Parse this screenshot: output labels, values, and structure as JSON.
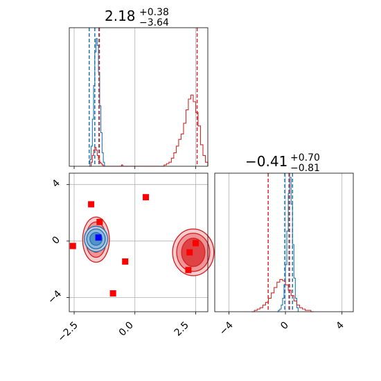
{
  "colors": {
    "blue": "#1f77b4",
    "red": "#d62728",
    "marker_red": "#ff0000",
    "marker_blue": "#0000ff",
    "grid": "#b0b0b0"
  },
  "chart_data": [
    {
      "panel": "top-left",
      "type": "histogram",
      "title": {
        "value": "2.18",
        "plus": "+0.38",
        "minus": "−3.64"
      },
      "xlim": [
        -2.7,
        3.0
      ],
      "grid": true,
      "series": [
        {
          "color": "blue",
          "bins": [
            [
              -1.9,
              0.0
            ],
            [
              -1.85,
              0.05
            ],
            [
              -1.8,
              0.15
            ],
            [
              -1.75,
              0.35
            ],
            [
              -1.7,
              0.6
            ],
            [
              -1.65,
              0.85
            ],
            [
              -1.6,
              0.95
            ],
            [
              -1.55,
              0.9
            ],
            [
              -1.5,
              0.7
            ],
            [
              -1.45,
              0.45
            ],
            [
              -1.4,
              0.25
            ],
            [
              -1.35,
              0.1
            ],
            [
              -1.3,
              0.03
            ],
            [
              -1.25,
              0.0
            ]
          ],
          "quantile_lines": [
            -1.88,
            -1.65,
            -1.48
          ]
        },
        {
          "color": "red",
          "bins": [
            [
              -1.85,
              0.0
            ],
            [
              -1.8,
              0.03
            ],
            [
              -1.75,
              0.08
            ],
            [
              -1.7,
              0.12
            ],
            [
              -1.65,
              0.14
            ],
            [
              -1.6,
              0.12
            ],
            [
              -1.55,
              0.08
            ],
            [
              -1.5,
              0.05
            ],
            [
              -1.45,
              0.03
            ],
            [
              -1.4,
              0.02
            ],
            [
              -1.35,
              0.01
            ],
            [
              -1.3,
              0.0
            ],
            [
              -0.55,
              0.01
            ],
            [
              -0.5,
              0.0
            ],
            [
              1.2,
              0.01
            ],
            [
              1.3,
              0.02
            ],
            [
              1.4,
              0.03
            ],
            [
              1.5,
              0.06
            ],
            [
              1.6,
              0.1
            ],
            [
              1.7,
              0.15
            ],
            [
              1.8,
              0.2
            ],
            [
              1.9,
              0.24
            ],
            [
              2.0,
              0.32
            ],
            [
              2.1,
              0.42
            ],
            [
              2.2,
              0.5
            ],
            [
              2.3,
              0.53
            ],
            [
              2.4,
              0.48
            ],
            [
              2.5,
              0.4
            ],
            [
              2.6,
              0.3
            ],
            [
              2.7,
              0.16
            ],
            [
              2.8,
              0.08
            ],
            [
              2.9,
              0.03
            ],
            [
              3.0,
              0.0
            ]
          ],
          "quantile_lines": [
            -1.46,
            2.56
          ]
        }
      ]
    },
    {
      "panel": "bottom-left",
      "type": "scatter",
      "xlim": [
        -2.7,
        3.0
      ],
      "ylim": [
        -5.0,
        4.8
      ],
      "xticks": [
        "−2.5",
        "0.0",
        "2.5"
      ],
      "yticks": [
        "4",
        "0",
        "−4"
      ],
      "grid": true,
      "contours": [
        {
          "color": "red",
          "cx": -1.6,
          "cy": 0.1,
          "rx": [
            0.55,
            0.42,
            0.28
          ],
          "ry": [
            1.6,
            1.25,
            0.9
          ]
        },
        {
          "color": "red",
          "cx": 2.4,
          "cy": -0.8,
          "rx": [
            0.85,
            0.68,
            0.48
          ],
          "ry": [
            1.65,
            1.35,
            1.0
          ]
        },
        {
          "color": "blue",
          "cx": -1.6,
          "cy": 0.15,
          "rx": [
            0.48,
            0.38,
            0.25
          ],
          "ry": [
            0.9,
            0.7,
            0.45
          ]
        }
      ],
      "markers_red": [
        [
          -1.8,
          2.6
        ],
        [
          0.45,
          3.1
        ],
        [
          -1.45,
          1.35
        ],
        [
          -2.55,
          -0.35
        ],
        [
          -0.4,
          -1.45
        ],
        [
          -0.9,
          -3.7
        ],
        [
          2.25,
          -0.8
        ],
        [
          2.5,
          -0.15
        ],
        [
          2.2,
          -2.05
        ]
      ],
      "marker_blue": [
        -1.5,
        0.25
      ]
    },
    {
      "panel": "bottom-right",
      "type": "histogram",
      "title": {
        "value": "−0.41",
        "plus": "+0.70",
        "minus": "−0.81"
      },
      "xlim": [
        -5.0,
        4.8
      ],
      "xticks": [
        "−4",
        "0",
        "4"
      ],
      "grid": true,
      "series": [
        {
          "color": "blue",
          "bins": [
            [
              -0.6,
              0.0
            ],
            [
              -0.5,
              0.01
            ],
            [
              -0.4,
              0.02
            ],
            [
              -0.3,
              0.05
            ],
            [
              -0.2,
              0.1
            ],
            [
              -0.1,
              0.2
            ],
            [
              0.0,
              0.35
            ],
            [
              0.1,
              0.6
            ],
            [
              0.2,
              0.88
            ],
            [
              0.3,
              1.0
            ],
            [
              0.4,
              0.8
            ],
            [
              0.5,
              0.5
            ],
            [
              0.6,
              0.25
            ],
            [
              0.7,
              0.1
            ],
            [
              0.8,
              0.03
            ],
            [
              0.9,
              0.0
            ]
          ],
          "quantile_lines": [
            -0.05,
            0.25,
            0.5
          ]
        },
        {
          "color": "red",
          "bins": [
            [
              -2.4,
              0.0
            ],
            [
              -2.2,
              0.01
            ],
            [
              -2.0,
              0.02
            ],
            [
              -1.8,
              0.03
            ],
            [
              -1.6,
              0.05
            ],
            [
              -1.4,
              0.07
            ],
            [
              -1.2,
              0.1
            ],
            [
              -1.0,
              0.14
            ],
            [
              -0.8,
              0.18
            ],
            [
              -0.6,
              0.22
            ],
            [
              -0.4,
              0.24
            ],
            [
              -0.2,
              0.23
            ],
            [
              0.0,
              0.2
            ],
            [
              0.2,
              0.16
            ],
            [
              0.4,
              0.12
            ],
            [
              0.6,
              0.08
            ],
            [
              0.8,
              0.05
            ],
            [
              1.0,
              0.03
            ],
            [
              1.2,
              0.02
            ],
            [
              1.4,
              0.01
            ],
            [
              1.6,
              0.01
            ],
            [
              1.8,
              0.0
            ],
            [
              2.0,
              0.0
            ]
          ],
          "quantile_lines": [
            -1.22,
            0.29
          ]
        }
      ]
    }
  ]
}
